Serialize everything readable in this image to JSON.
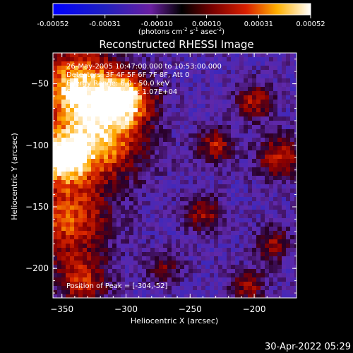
{
  "chart_data": {
    "type": "heatmap",
    "title": "Reconstructed RHESSI Image",
    "xlabel": "Heliocentric X (arcsec)",
    "ylabel": "Heliocentric Y (arcsec)",
    "xlim": [
      -357,
      -167
    ],
    "ylim": [
      -224,
      -25
    ],
    "xticks": [
      -350,
      -300,
      -250,
      -200
    ],
    "yticks": [
      -50,
      -100,
      -150,
      -200
    ],
    "colorbar": {
      "ticks": [
        "-0.00052",
        "-0.00031",
        "-0.00010",
        "0.00010",
        "0.00031",
        "0.00052"
      ],
      "range": [
        -0.00052,
        0.00052
      ],
      "unit_label": "(photons cm",
      "unit_sup1": "-2",
      "unit_mid": " s",
      "unit_sup2": "-1",
      "unit_mid2": " asec",
      "unit_sup3": "-2",
      "unit_end": ")"
    },
    "peak": {
      "x": -304,
      "y": -52
    }
  },
  "annotations": {
    "line1": "26-May-2005 10:47:00.000 to 10:53:00.000",
    "line2": "Detectors: 3F 4F 5F 6F 7F 8F, Att 0",
    "line3": "Energy Range: 6.0 - 50.0 keV",
    "line4": "Clean    Total counts: 1.07E+04",
    "peak_text": "Position of Peak = [-304,-52]"
  },
  "footer": {
    "timestamp": "30-Apr-2022 05:29"
  }
}
